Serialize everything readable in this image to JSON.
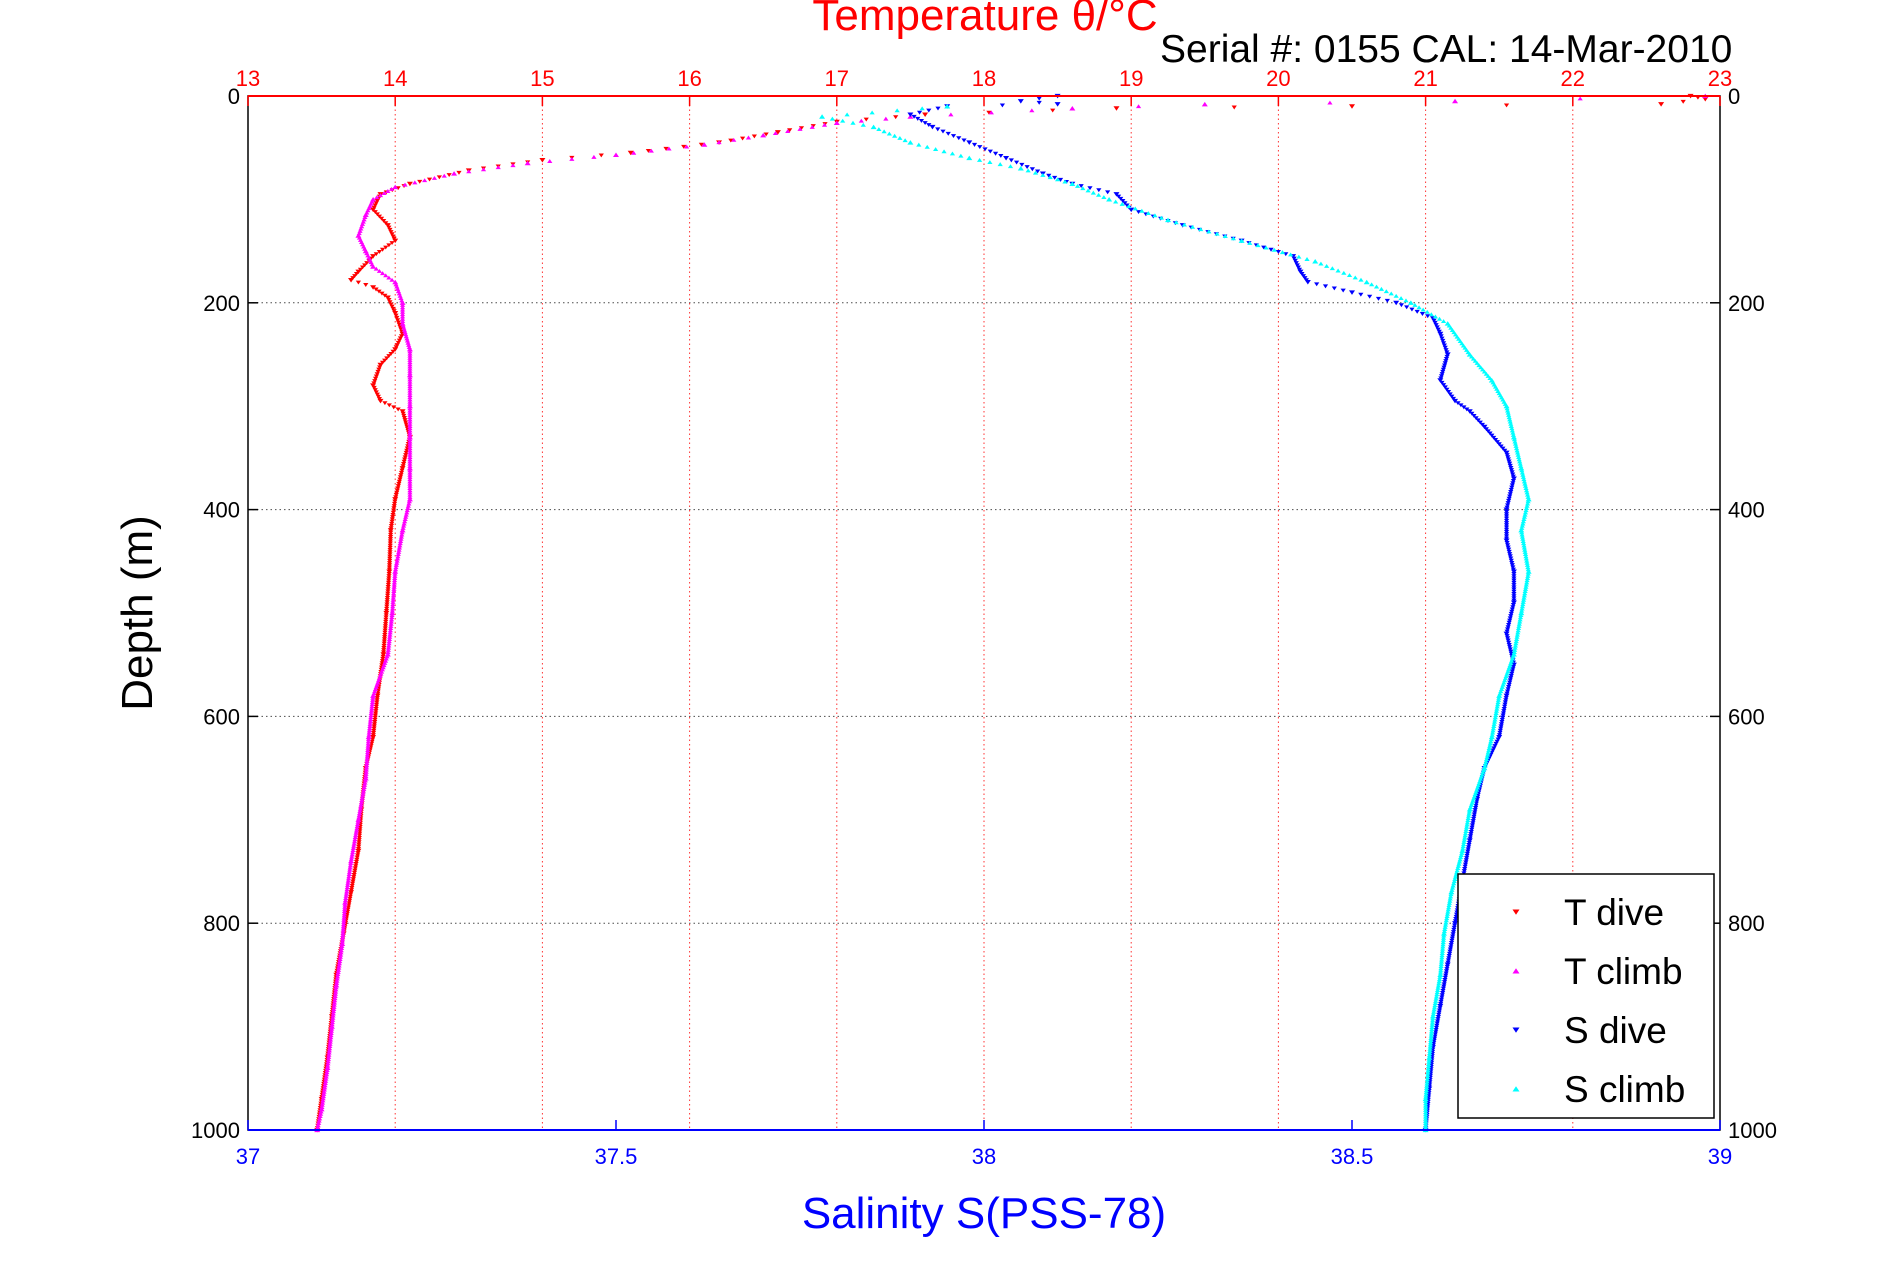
{
  "chart_data": {
    "type": "scatter",
    "title": "Temperature θ/°C",
    "subtitle": "Serial #: 0155  CAL: 14-Mar-2010",
    "xlabel": "Salinity S(PSS-78)",
    "x2label": "Temperature θ/°C",
    "ylabel": "Depth (m)",
    "xlim": [
      37,
      39
    ],
    "x2lim": [
      13,
      23
    ],
    "ylim": [
      0,
      1000
    ],
    "y_reversed": true,
    "grid": true,
    "legend_position": "bottom-right",
    "x_ticks": [
      "37",
      "37.5",
      "38",
      "38.5",
      "39"
    ],
    "x2_ticks": [
      "13",
      "14",
      "15",
      "16",
      "17",
      "18",
      "19",
      "20",
      "21",
      "22",
      "23"
    ],
    "y_ticks": [
      "0",
      "200",
      "400",
      "600",
      "800",
      "1000"
    ],
    "colors": {
      "temperature_axis": "#ff0000",
      "salinity_axis": "#0000ff",
      "grid": "#000000"
    },
    "series": [
      {
        "name": "T dive",
        "axis": "temperature",
        "color": "#ff0000",
        "marker": "triangle-down",
        "points": [
          [
            22.8,
            0
          ],
          [
            22.9,
            3
          ],
          [
            22.6,
            8
          ],
          [
            20.5,
            10
          ],
          [
            18.9,
            12
          ],
          [
            17.6,
            18
          ],
          [
            17.0,
            25
          ],
          [
            16.6,
            35
          ],
          [
            16.2,
            45
          ],
          [
            15.6,
            55
          ],
          [
            15.0,
            62
          ],
          [
            14.5,
            72
          ],
          [
            14.1,
            85
          ],
          [
            13.9,
            95
          ],
          [
            13.85,
            110
          ],
          [
            13.95,
            125
          ],
          [
            14.0,
            140
          ],
          [
            13.85,
            155
          ],
          [
            13.75,
            170
          ],
          [
            13.7,
            178
          ],
          [
            13.85,
            185
          ],
          [
            13.95,
            195
          ],
          [
            14.0,
            210
          ],
          [
            14.05,
            230
          ],
          [
            14.0,
            245
          ],
          [
            13.9,
            260
          ],
          [
            13.85,
            280
          ],
          [
            13.9,
            295
          ],
          [
            14.05,
            305
          ],
          [
            14.1,
            330
          ],
          [
            14.05,
            360
          ],
          [
            14.0,
            390
          ],
          [
            13.97,
            420
          ],
          [
            13.96,
            460
          ],
          [
            13.94,
            500
          ],
          [
            13.92,
            540
          ],
          [
            13.88,
            580
          ],
          [
            13.85,
            620
          ],
          [
            13.8,
            650
          ],
          [
            13.77,
            690
          ],
          [
            13.75,
            730
          ],
          [
            13.7,
            770
          ],
          [
            13.65,
            810
          ],
          [
            13.6,
            850
          ],
          [
            13.57,
            890
          ],
          [
            13.54,
            930
          ],
          [
            13.5,
            970
          ],
          [
            13.47,
            1000
          ]
        ]
      },
      {
        "name": "T climb",
        "axis": "temperature",
        "color": "#ff00ff",
        "marker": "triangle-up",
        "points": [
          [
            22.9,
            0
          ],
          [
            21.2,
            5
          ],
          [
            19.5,
            8
          ],
          [
            18.6,
            12
          ],
          [
            17.5,
            20
          ],
          [
            17.0,
            26
          ],
          [
            16.5,
            38
          ],
          [
            16.1,
            47
          ],
          [
            15.5,
            57
          ],
          [
            14.9,
            65
          ],
          [
            14.4,
            75
          ],
          [
            14.0,
            88
          ],
          [
            13.85,
            100
          ],
          [
            13.8,
            115
          ],
          [
            13.75,
            135
          ],
          [
            13.8,
            150
          ],
          [
            13.85,
            165
          ],
          [
            14.0,
            180
          ],
          [
            14.05,
            200
          ],
          [
            14.05,
            220
          ],
          [
            14.1,
            245
          ],
          [
            14.1,
            270
          ],
          [
            14.1,
            300
          ],
          [
            14.1,
            330
          ],
          [
            14.1,
            360
          ],
          [
            14.1,
            390
          ],
          [
            14.05,
            420
          ],
          [
            14.0,
            460
          ],
          [
            13.98,
            500
          ],
          [
            13.95,
            540
          ],
          [
            13.85,
            580
          ],
          [
            13.82,
            620
          ],
          [
            13.8,
            660
          ],
          [
            13.75,
            700
          ],
          [
            13.7,
            740
          ],
          [
            13.66,
            780
          ],
          [
            13.64,
            820
          ],
          [
            13.6,
            860
          ],
          [
            13.57,
            900
          ],
          [
            13.54,
            940
          ],
          [
            13.5,
            980
          ],
          [
            13.47,
            1000
          ]
        ]
      },
      {
        "name": "S dive",
        "axis": "salinity",
        "color": "#0000ff",
        "marker": "triangle-down",
        "points": [
          [
            38.1,
            0
          ],
          [
            38.05,
            5
          ],
          [
            38.1,
            8
          ],
          [
            37.95,
            10
          ],
          [
            37.9,
            18
          ],
          [
            37.93,
            30
          ],
          [
            37.98,
            45
          ],
          [
            38.03,
            60
          ],
          [
            38.08,
            75
          ],
          [
            38.12,
            85
          ],
          [
            38.18,
            95
          ],
          [
            38.2,
            110
          ],
          [
            38.27,
            125
          ],
          [
            38.35,
            140
          ],
          [
            38.42,
            155
          ],
          [
            38.43,
            170
          ],
          [
            38.44,
            180
          ],
          [
            38.5,
            190
          ],
          [
            38.56,
            200
          ],
          [
            38.61,
            215
          ],
          [
            38.62,
            230
          ],
          [
            38.63,
            250
          ],
          [
            38.62,
            275
          ],
          [
            38.64,
            295
          ],
          [
            38.66,
            305
          ],
          [
            38.68,
            320
          ],
          [
            38.71,
            345
          ],
          [
            38.72,
            370
          ],
          [
            38.71,
            400
          ],
          [
            38.71,
            430
          ],
          [
            38.72,
            460
          ],
          [
            38.72,
            490
          ],
          [
            38.71,
            520
          ],
          [
            38.72,
            550
          ],
          [
            38.71,
            580
          ],
          [
            38.7,
            620
          ],
          [
            38.68,
            650
          ],
          [
            38.67,
            680
          ],
          [
            38.66,
            720
          ],
          [
            38.65,
            760
          ],
          [
            38.64,
            800
          ],
          [
            38.63,
            840
          ],
          [
            38.62,
            880
          ],
          [
            38.61,
            920
          ],
          [
            38.605,
            960
          ],
          [
            38.6,
            1000
          ]
        ]
      },
      {
        "name": "S climb",
        "axis": "salinity",
        "color": "#00ffff",
        "marker": "triangle-up",
        "points": [
          [
            37.95,
            10
          ],
          [
            37.78,
            20
          ],
          [
            37.85,
            30
          ],
          [
            37.9,
            45
          ],
          [
            37.98,
            60
          ],
          [
            38.05,
            70
          ],
          [
            38.12,
            85
          ],
          [
            38.17,
            100
          ],
          [
            38.25,
            120
          ],
          [
            38.35,
            140
          ],
          [
            38.45,
            160
          ],
          [
            38.52,
            180
          ],
          [
            38.58,
            200
          ],
          [
            38.63,
            220
          ],
          [
            38.66,
            250
          ],
          [
            38.69,
            275
          ],
          [
            38.71,
            300
          ],
          [
            38.72,
            330
          ],
          [
            38.73,
            360
          ],
          [
            38.74,
            390
          ],
          [
            38.73,
            420
          ],
          [
            38.74,
            460
          ],
          [
            38.73,
            500
          ],
          [
            38.72,
            540
          ],
          [
            38.7,
            580
          ],
          [
            38.69,
            620
          ],
          [
            38.68,
            650
          ],
          [
            38.66,
            690
          ],
          [
            38.65,
            730
          ],
          [
            38.635,
            770
          ],
          [
            38.625,
            810
          ],
          [
            38.62,
            850
          ],
          [
            38.61,
            890
          ],
          [
            38.605,
            930
          ],
          [
            38.6,
            970
          ],
          [
            38.6,
            1000
          ]
        ]
      }
    ]
  }
}
